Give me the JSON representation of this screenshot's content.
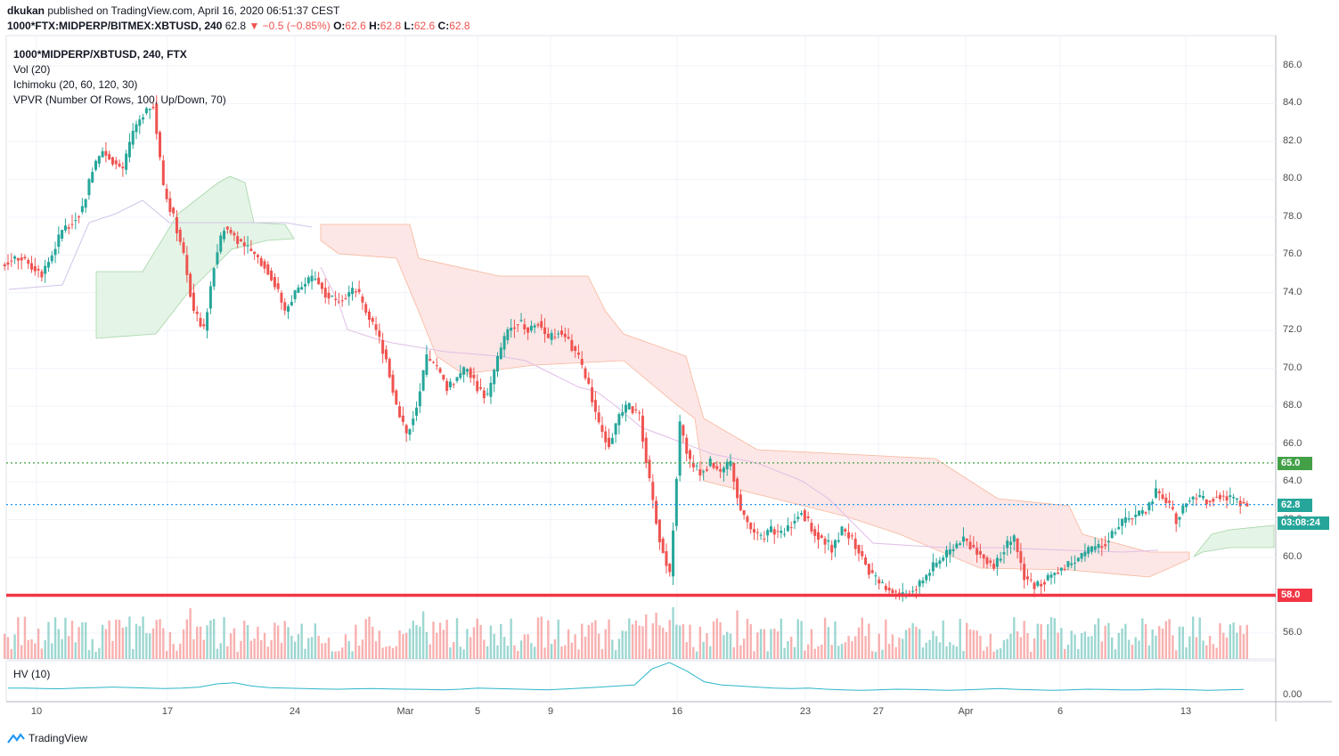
{
  "header": {
    "author": "dkukan",
    "published": "published on TradingView.com, April 16, 2020 06:51:37 CEST",
    "symbol_line": "1000*FTX:MIDPERP/BITMEX:XBTUSD, 240",
    "last": "62.8",
    "change": "−0.5 (−0.85%)",
    "o_label": "O:",
    "o": "62.6",
    "h_label": "H:",
    "h": "62.8",
    "l_label": "L:",
    "l": "62.6",
    "c_label": "C:",
    "c": "62.8"
  },
  "legend": {
    "title": "1000*MIDPERP/XBTUSD, 240, FTX",
    "vol": "Vol (20)",
    "ichimoku": "Ichimoku (20, 60, 120, 30)",
    "vpvr": "VPVR (Number Of Rows, 100, Up/Down, 70)"
  },
  "price_tags": {
    "resistance": "65.0",
    "current": "62.8",
    "countdown": "03:08:24",
    "support": "58.0"
  },
  "hv": {
    "label": "HV (10)",
    "tick": "0.00"
  },
  "brand": {
    "name": "TradingView"
  },
  "colors": {
    "up": "#26a69a",
    "down": "#ef5350",
    "support": "#f23645",
    "resistance": "#43a047",
    "hv": "#2bb6c9",
    "cloud_bear": "#fde0e0",
    "cloud_bull": "#dff2e2"
  },
  "chart_data": {
    "type": "candlestick",
    "y_ticks": [
      "86.0",
      "84.0",
      "82.0",
      "80.0",
      "78.0",
      "76.0",
      "74.0",
      "72.0",
      "70.0",
      "68.0",
      "66.0",
      "64.0",
      "62.0",
      "60.0",
      "58.0",
      "56.0"
    ],
    "ylim": [
      55,
      87
    ],
    "x_ticks": [
      "10",
      "17",
      "24",
      "Mar",
      "5",
      "9",
      "16",
      "23",
      "27",
      "Apr",
      "6",
      "13"
    ],
    "horizontal_lines": [
      {
        "value": 65.0,
        "style": "dotted",
        "color": "#43a047"
      },
      {
        "value": 62.8,
        "style": "dotted",
        "color": "#2196f3"
      },
      {
        "value": 58.0,
        "style": "solid",
        "color": "#f23645"
      }
    ],
    "close_series": [
      75.8,
      75.9,
      75.4,
      75.0,
      76.0,
      77.3,
      77.8,
      78.5,
      80.5,
      81.5,
      81.0,
      80.5,
      82.5,
      83.5,
      84.0,
      79.5,
      78.0,
      76.0,
      73.0,
      72.0,
      75.5,
      77.5,
      77.0,
      76.5,
      76.0,
      75.5,
      74.5,
      73.0,
      74.0,
      74.5,
      74.8,
      74.0,
      73.5,
      73.8,
      74.2,
      73.0,
      72.0,
      70.5,
      68.0,
      66.5,
      68.0,
      70.5,
      70.0,
      69.0,
      69.5,
      70.0,
      69.0,
      68.5,
      70.5,
      72.0,
      72.5,
      72.0,
      72.5,
      71.5,
      72.0,
      71.5,
      70.5,
      69.0,
      67.0,
      66.0,
      67.5,
      68.0,
      67.5,
      64.0,
      61.0,
      59.0,
      67.0,
      65.0,
      64.5,
      65.0,
      64.5,
      65.0,
      62.5,
      61.5,
      61.0,
      61.5,
      61.2,
      61.8,
      62.5,
      61.5,
      61.0,
      60.5,
      61.5,
      61.0,
      60.0,
      59.0,
      58.5,
      58.2,
      58.0,
      58.3,
      58.8,
      59.5,
      60.0,
      60.5,
      61.0,
      60.5,
      60.0,
      59.5,
      60.5,
      61.0,
      59.0,
      58.5,
      58.8,
      59.2,
      59.5,
      59.8,
      60.2,
      60.5,
      60.8,
      61.5,
      62.0,
      62.2,
      62.5,
      63.5,
      63.0,
      62.0,
      63.0,
      63.2,
      63.0,
      63.3,
      63.2,
      63.0,
      62.8
    ],
    "hv_series": [
      0.3,
      0.3,
      0.28,
      0.27,
      0.3,
      0.32,
      0.35,
      0.33,
      0.3,
      0.28,
      0.3,
      0.35,
      0.5,
      0.55,
      0.4,
      0.32,
      0.3,
      0.28,
      0.26,
      0.25,
      0.27,
      0.28,
      0.26,
      0.25,
      0.24,
      0.22,
      0.25,
      0.3,
      0.28,
      0.26,
      0.24,
      0.22,
      0.26,
      0.3,
      0.35,
      0.4,
      0.45,
      1.2,
      1.5,
      1.1,
      0.6,
      0.45,
      0.4,
      0.35,
      0.3,
      0.28,
      0.3,
      0.25,
      0.22,
      0.2,
      0.22,
      0.25,
      0.24,
      0.22,
      0.2,
      0.22,
      0.25,
      0.28,
      0.24,
      0.22,
      0.2,
      0.22,
      0.25,
      0.24,
      0.22,
      0.22,
      0.25,
      0.24,
      0.22,
      0.2,
      0.22,
      0.24
    ]
  }
}
